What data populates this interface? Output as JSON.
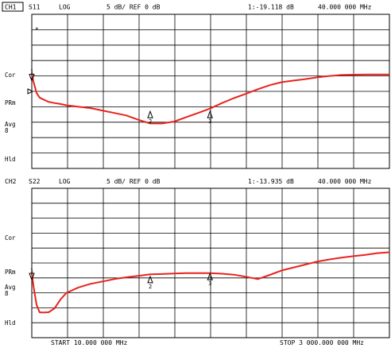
{
  "colors": {
    "trace": "#e8231e",
    "grid": "#000000",
    "background": "#ffffff",
    "text": "#000000"
  },
  "channels": [
    {
      "channel": "CH1",
      "param": "S11",
      "format": "LOG",
      "scale": "5 dB/ REF 0 dB",
      "marker_readout": "1:-19.118 dB",
      "marker_freq": "40.000 000 MHz",
      "flag": "*",
      "side_labels": [
        "Cor",
        "PRm",
        "Avg",
        "8",
        "Hld"
      ],
      "markers": [
        {
          "label": "1",
          "x": 10,
          "y": -14.5
        },
        {
          "label": "2",
          "x": 1000,
          "y": -26.5
        },
        {
          "label": "3",
          "x": 1500,
          "y": -26.5
        }
      ]
    },
    {
      "channel": "CH2",
      "param": "S22",
      "format": "LOG",
      "scale": "5 dB/ REF 0 dB",
      "marker_readout": "1:-13.935 dB",
      "marker_freq": "40.000 000 MHz",
      "flag": "",
      "side_labels": [
        "Cor",
        "PRm",
        "Avg",
        "8",
        "Hld"
      ],
      "markers": [
        {
          "label": "1",
          "x": 10,
          "y": -23.5
        },
        {
          "label": "2",
          "x": 1000,
          "y": -24.5
        },
        {
          "label": "3",
          "x": 1500,
          "y": -23.5
        }
      ]
    }
  ],
  "footer": {
    "start": "START  10.000 000 MHz",
    "stop": "STOP 3 000.000 000 MHz"
  },
  "chart_data": [
    {
      "type": "line",
      "title": "",
      "xlabel": "",
      "ylabel": "",
      "xlim": [
        10,
        3000
      ],
      "ylim": [
        -45,
        5
      ],
      "reference_db": 0,
      "grid": true,
      "series": [
        {
          "x": [
            10,
            25,
            50,
            75,
            100,
            150,
            200,
            250,
            300,
            400,
            500,
            600,
            700,
            800,
            900,
            1000,
            1100,
            1200,
            1300,
            1400,
            1500,
            1600,
            1700,
            1800,
            1900,
            2000,
            2100,
            2200,
            2300,
            2400,
            2500,
            2600,
            2700,
            2800,
            2900,
            3000
          ],
          "y": [
            -14.5,
            -17,
            -20.5,
            -22,
            -22.5,
            -23.4,
            -23.8,
            -24.1,
            -24.5,
            -25,
            -25.4,
            -26.2,
            -27,
            -27.8,
            -29.2,
            -30.4,
            -30.4,
            -29.8,
            -28.4,
            -27,
            -25.6,
            -23.8,
            -22.2,
            -20.8,
            -19.3,
            -18,
            -17,
            -16.5,
            -16,
            -15.4,
            -15,
            -14.7,
            -14.6,
            -14.5,
            -14.5,
            -14.5
          ]
        }
      ]
    },
    {
      "type": "line",
      "title": "",
      "xlabel": "",
      "ylabel": "",
      "xlim": [
        10,
        3000
      ],
      "ylim": [
        -45,
        5
      ],
      "reference_db": 0,
      "grid": true,
      "series": [
        {
          "x": [
            10,
            25,
            50,
            75,
            100,
            150,
            200,
            250,
            300,
            400,
            500,
            600,
            700,
            800,
            900,
            1000,
            1100,
            1200,
            1300,
            1400,
            1500,
            1600,
            1700,
            1800,
            1900,
            2000,
            2100,
            2200,
            2300,
            2400,
            2500,
            2600,
            2700,
            2800,
            2900,
            3000
          ],
          "y": [
            -23.5,
            -28,
            -34,
            -36.5,
            -36.6,
            -36.5,
            -35.2,
            -32.2,
            -30,
            -28.2,
            -27,
            -26.2,
            -25.4,
            -24.8,
            -24.3,
            -23.8,
            -23.7,
            -23.5,
            -23.4,
            -23.4,
            -23.4,
            -23.6,
            -23.9,
            -24.6,
            -25.4,
            -24,
            -22.5,
            -21.5,
            -20.5,
            -19.5,
            -18.8,
            -18.2,
            -17.7,
            -17.3,
            -16.7,
            -16.4
          ]
        }
      ]
    }
  ]
}
